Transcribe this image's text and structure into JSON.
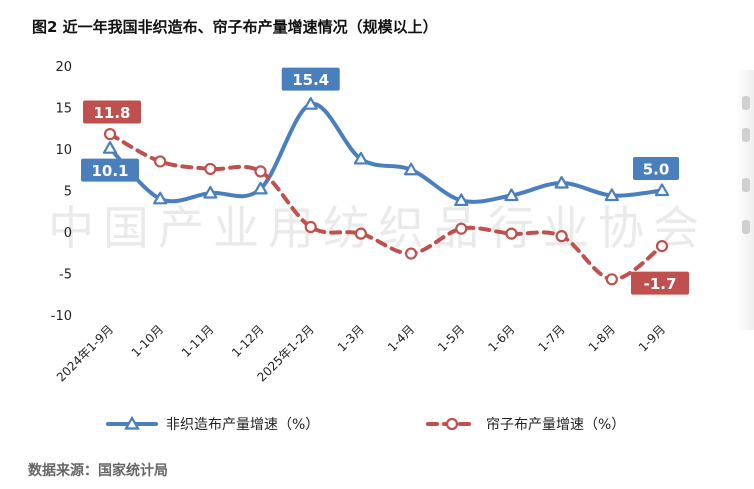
{
  "title": "图2 近一年我国非织造布、帘子布产量增速情况（规模以上）",
  "source": "数据来源：国家统计局",
  "watermark": "中国产业用纺织品行业协会",
  "chart_data": {
    "type": "line",
    "categories": [
      "2024年1-9月",
      "1-10月",
      "1-11月",
      "1-12月",
      "2025年1-2月",
      "1-3月",
      "1-4月",
      "1-5月",
      "1-6月",
      "1-7月",
      "1-8月",
      "1-9月"
    ],
    "ylim": [
      -10,
      20
    ],
    "yticks": [
      -10,
      -5,
      0,
      5,
      10,
      15,
      20
    ],
    "grid": false,
    "legend_position": "bottom",
    "series": [
      {
        "name": "非织造布产量增速（%）",
        "color": "#4a7fbd",
        "style": "solid",
        "marker": "triangle",
        "values": [
          10.1,
          4.0,
          4.7,
          5.2,
          15.4,
          8.8,
          7.5,
          3.8,
          4.4,
          5.9,
          4.4,
          5.0
        ],
        "labels": [
          {
            "index": 0,
            "text": "10.1"
          },
          {
            "index": 4,
            "text": "15.4"
          },
          {
            "index": 11,
            "text": "5.0"
          }
        ]
      },
      {
        "name": "帘子布产量增速（%）",
        "color": "#c0504d",
        "style": "dashed",
        "marker": "circle",
        "values": [
          11.8,
          8.5,
          7.6,
          7.3,
          0.6,
          -0.2,
          -2.6,
          0.4,
          -0.2,
          -0.5,
          -5.7,
          -1.7
        ],
        "labels": [
          {
            "index": 0,
            "text": "11.8"
          },
          {
            "index": 11,
            "text": "-1.7"
          }
        ]
      }
    ]
  }
}
